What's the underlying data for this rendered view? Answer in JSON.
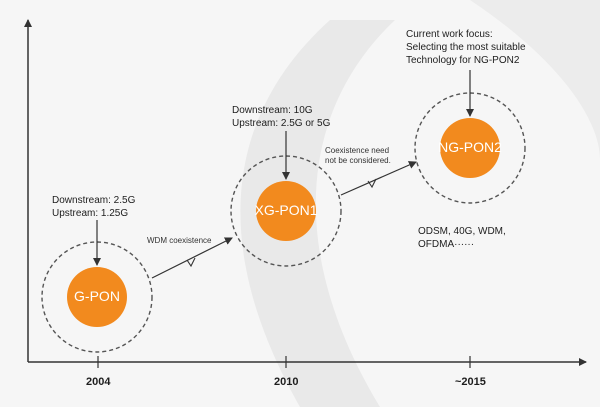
{
  "diagram": {
    "colors": {
      "node_fill": "#f28a1e",
      "axis": "#333333",
      "ring": "#555555",
      "text": "#1e1e1e"
    },
    "nodes": [
      {
        "id": "gpon",
        "label": "G-PON",
        "annotation": [
          "Downstream: 2.5G",
          "Upstream: 1.25G"
        ]
      },
      {
        "id": "xgpon1",
        "label": "XG-PON1",
        "annotation": [
          "Downstream: 10G",
          "Upstream: 2.5G or 5G"
        ]
      },
      {
        "id": "ngpon2",
        "label": "NG-PON2",
        "annotation": [
          "Current work focus:",
          "Selecting the most suitable",
          "Technology for NG-PON2"
        ],
        "note": [
          "ODSM, 40G, WDM,",
          "OFDMA······"
        ]
      }
    ],
    "transitions": [
      {
        "from": "gpon",
        "to": "xgpon1",
        "label": [
          "WDM coexistence"
        ]
      },
      {
        "from": "xgpon1",
        "to": "ngpon2",
        "label": [
          "Coexistence need",
          "not be considered."
        ]
      }
    ],
    "x_axis_labels": [
      "2004",
      "2010",
      "~2015"
    ]
  }
}
